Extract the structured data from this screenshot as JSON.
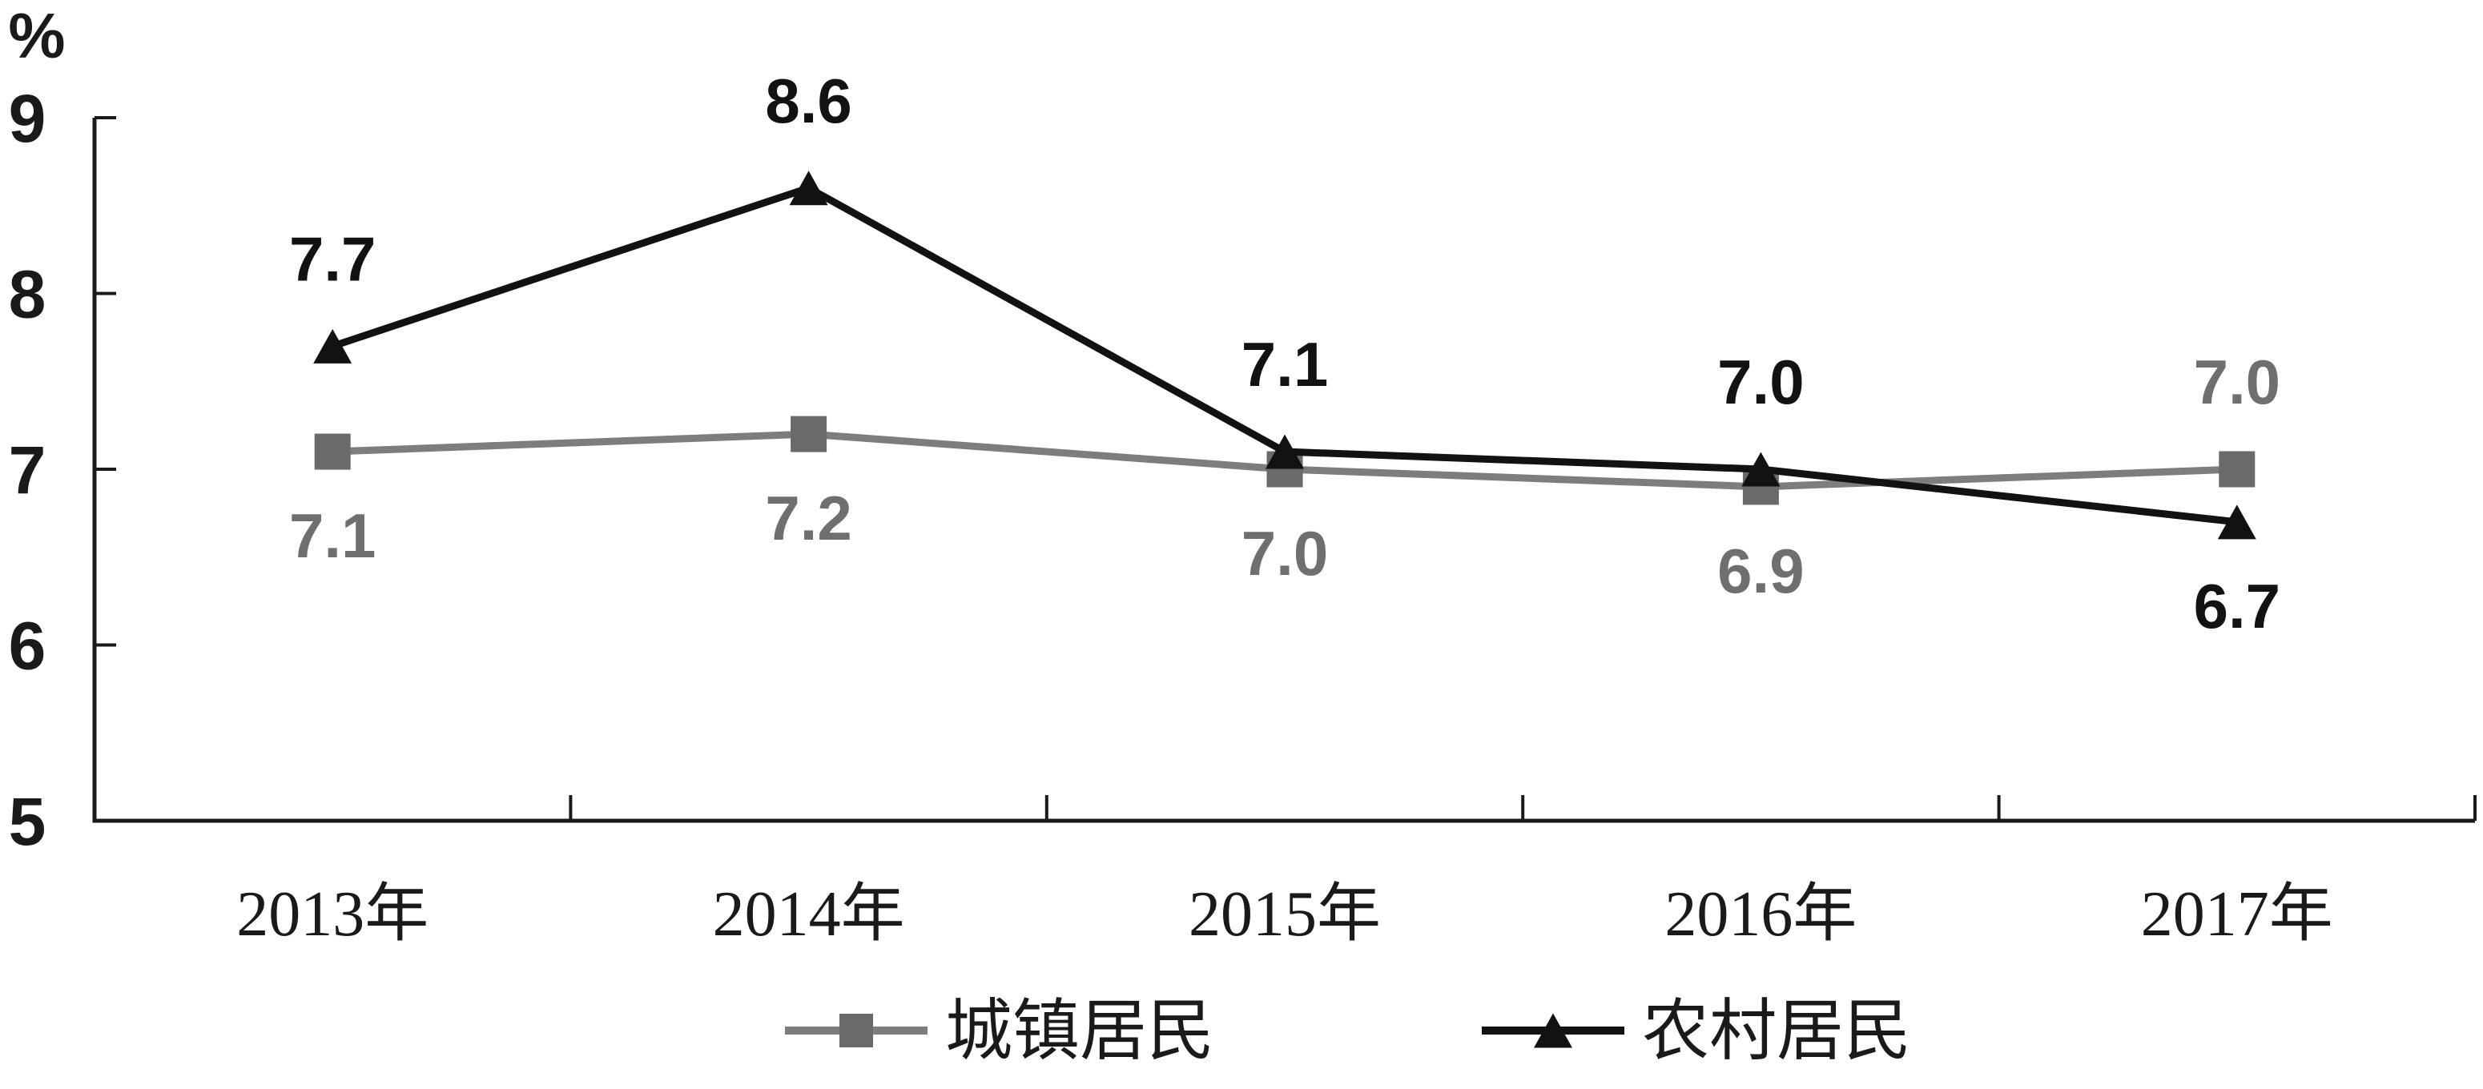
{
  "chart_data": {
    "type": "line",
    "title": "",
    "unit_label": "%",
    "categories": [
      "2013年",
      "2014年",
      "2015年",
      "2016年",
      "2017年"
    ],
    "series": [
      {
        "name": "城镇居民",
        "marker": "square",
        "color": "#7d7d7d",
        "marker_color": "#6a6a6a",
        "label_color": "#6f6f6f",
        "values": [
          7.1,
          7.2,
          7.0,
          6.9,
          7.0
        ],
        "labels": [
          "7.1",
          "7.2",
          "7.0",
          "6.9",
          "7.0"
        ],
        "label_sides": [
          "below",
          "below",
          "below",
          "below",
          "above"
        ]
      },
      {
        "name": "农村居民",
        "marker": "triangle",
        "color": "#121212",
        "marker_color": "#121212",
        "label_color": "#121212",
        "values": [
          7.7,
          8.6,
          7.1,
          7.0,
          6.7
        ],
        "labels": [
          "7.7",
          "8.6",
          "7.1",
          "7.0",
          "6.7"
        ],
        "label_sides": [
          "above",
          "above",
          "above",
          "above",
          "below"
        ]
      }
    ],
    "ylim": [
      5,
      9
    ],
    "yticks": [
      "5",
      "6",
      "7",
      "8",
      "9"
    ],
    "grid": false,
    "legend_position": "bottom",
    "axis_color": "#1a1a1a",
    "background_color": "#ffffff"
  }
}
